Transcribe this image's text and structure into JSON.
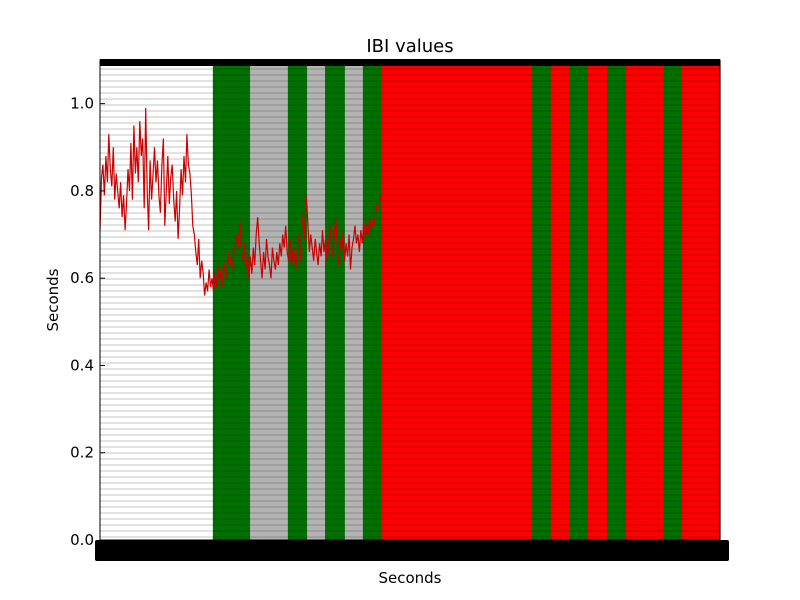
{
  "chart_data": {
    "type": "line",
    "title": "IBI values",
    "xlabel": "Seconds",
    "ylabel": "Seconds",
    "ylim": [
      0.0,
      1.1
    ],
    "y_ticks": [
      "0.0",
      "0.2",
      "0.4",
      "0.6",
      "0.8",
      "1.0"
    ],
    "grid": false,
    "background_bands": {
      "colors": {
        "none": "#ffffff",
        "green": "#007000",
        "gray": "#b3b3b3",
        "red": "#ff0000"
      },
      "sequence": [
        {
          "state": "none",
          "share": 0.182
        },
        {
          "state": "green",
          "share": 0.06
        },
        {
          "state": "gray",
          "share": 0.061
        },
        {
          "state": "green",
          "share": 0.031
        },
        {
          "state": "gray",
          "share": 0.029
        },
        {
          "state": "green",
          "share": 0.032
        },
        {
          "state": "gray",
          "share": 0.029
        },
        {
          "state": "green",
          "share": 0.03
        },
        {
          "state": "red",
          "share": 0.243
        },
        {
          "state": "green",
          "share": 0.03
        },
        {
          "state": "red",
          "share": 0.031
        },
        {
          "state": "green",
          "share": 0.029
        },
        {
          "state": "red",
          "share": 0.031
        },
        {
          "state": "green",
          "share": 0.03
        },
        {
          "state": "red",
          "share": 0.061
        },
        {
          "state": "green",
          "share": 0.029
        },
        {
          "state": "red",
          "share": 0.062
        }
      ]
    },
    "series": [
      {
        "color": "#cc0000",
        "values": [
          0.71,
          0.83,
          0.86,
          0.79,
          0.88,
          0.82,
          0.93,
          0.85,
          0.81,
          0.9,
          0.78,
          0.84,
          0.8,
          0.76,
          0.82,
          0.74,
          0.79,
          0.71,
          0.77,
          0.85,
          0.8,
          0.91,
          0.78,
          0.95,
          0.84,
          0.9,
          0.82,
          0.96,
          0.88,
          0.92,
          0.76,
          0.99,
          0.8,
          0.71,
          0.87,
          0.78,
          0.84,
          0.9,
          0.82,
          0.87,
          0.79,
          0.75,
          0.86,
          0.92,
          0.72,
          0.8,
          0.88,
          0.77,
          0.83,
          0.86,
          0.78,
          0.73,
          0.8,
          0.69,
          0.76,
          0.85,
          0.79,
          0.88,
          0.82,
          0.93,
          0.86,
          0.84,
          0.79,
          0.72,
          0.7,
          0.66,
          0.63,
          0.69,
          0.6,
          0.64,
          0.61,
          0.56,
          0.59,
          0.57,
          0.62,
          0.58,
          0.6,
          0.57,
          0.61,
          0.58,
          0.63,
          0.59,
          0.62,
          0.58,
          0.64,
          0.61,
          0.6,
          0.66,
          0.63,
          0.65,
          0.62,
          0.66,
          0.68,
          0.7,
          0.67,
          0.73,
          0.66,
          0.64,
          0.68,
          0.62,
          0.66,
          0.6,
          0.65,
          0.61,
          0.67,
          0.63,
          0.7,
          0.74,
          0.68,
          0.64,
          0.6,
          0.66,
          0.62,
          0.69,
          0.65,
          0.63,
          0.6,
          0.67,
          0.64,
          0.62,
          0.66,
          0.63,
          0.68,
          0.65,
          0.7,
          0.67,
          0.72,
          0.66,
          0.64,
          0.69,
          0.63,
          0.67,
          0.65,
          0.62,
          0.68,
          0.7,
          0.64,
          0.72,
          0.75,
          0.69,
          0.79,
          0.73,
          0.66,
          0.7,
          0.67,
          0.64,
          0.69,
          0.66,
          0.63,
          0.68,
          0.65,
          0.71,
          0.66,
          0.69,
          0.64,
          0.67,
          0.72,
          0.68,
          0.65,
          0.7,
          0.74,
          0.67,
          0.63,
          0.69,
          0.66,
          0.71,
          0.64,
          0.68,
          0.65,
          0.7,
          0.62,
          0.67,
          0.69,
          0.72,
          0.68,
          0.7,
          0.66,
          0.71,
          0.68,
          0.73,
          0.69,
          0.72,
          0.7,
          0.74,
          0.71,
          0.73,
          0.72,
          0.75,
          0.77,
          0.76,
          0.78,
          0.79
        ]
      }
    ]
  }
}
